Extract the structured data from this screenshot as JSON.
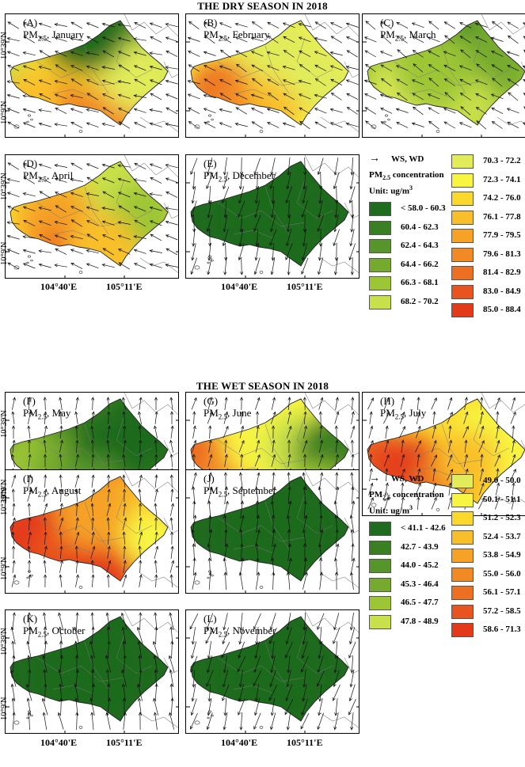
{
  "dry": {
    "title": "THE DRY SEASON IN 2018",
    "panels": [
      {
        "label": "(A)",
        "name": "PM2.5, January",
        "pre": "PM",
        "sub": "2.5",
        "post": ", January"
      },
      {
        "label": "(B)",
        "name": "PM2.5, February",
        "pre": "PM",
        "sub": "2.5",
        "post": ", February"
      },
      {
        "label": "(C)",
        "name": "PM2.5, March",
        "pre": "PM",
        "sub": "2.5",
        "post": ", March"
      },
      {
        "label": "(D)",
        "name": "PM2.5, April",
        "pre": "PM",
        "sub": "2.5",
        "post": ", April"
      },
      {
        "label": "(E)",
        "name": "PM2.5, December",
        "pre": "PM",
        "sub": "2.5",
        "post": ", December"
      }
    ],
    "legend": {
      "wind_label": "WS, WD",
      "conc_title_pre": "PM",
      "conc_title_sub": "2.5",
      "conc_title_post": " concentration",
      "unit": "Unit: ug/m",
      "unit_sup": "3",
      "items": [
        {
          "range": "< 58.0 - 60.3",
          "color": "#1f6b1f"
        },
        {
          "range": "60.4 - 62.3",
          "color": "#3a7f22"
        },
        {
          "range": "62.4 - 64.3",
          "color": "#55952a"
        },
        {
          "range": "64.4 - 66.2",
          "color": "#76aa2e"
        },
        {
          "range": "66.3 - 68.1",
          "color": "#9dc634"
        },
        {
          "range": "68.2 - 70.2",
          "color": "#c8e04a"
        },
        {
          "range": "70.3 - 72.2",
          "color": "#e2ec5a"
        },
        {
          "range": "72.3 - 74.1",
          "color": "#f8f542"
        },
        {
          "range": "74.2 - 76.0",
          "color": "#fbd82c"
        },
        {
          "range": "76.1 - 77.8",
          "color": "#f9bf2a"
        },
        {
          "range": "77.9 - 79.5",
          "color": "#f5a227"
        },
        {
          "range": "79.6 - 81.3",
          "color": "#f18a25"
        },
        {
          "range": "81.4 - 82.9",
          "color": "#ec6f22"
        },
        {
          "range": "83.0 - 84.9",
          "color": "#e9531f"
        },
        {
          "range": "85.0 - 88.4",
          "color": "#e43a1c"
        }
      ]
    }
  },
  "wet": {
    "title": "THE WET SEASON IN 2018",
    "panels": [
      {
        "label": "(F)",
        "name": "PM2.5, May",
        "pre": "PM",
        "sub": "2.5",
        "post": ", May"
      },
      {
        "label": "(G)",
        "name": "PM2.5, June",
        "pre": "PM",
        "sub": "2.5",
        "post": ", June"
      },
      {
        "label": "(H)",
        "name": "PM2.5, July",
        "pre": "PM",
        "sub": "2.5",
        "post": ", July"
      },
      {
        "label": "(I)",
        "name": "PM2.5, August",
        "pre": "PM",
        "sub": "2.5",
        "post": ", August"
      },
      {
        "label": "(J)",
        "name": "PM2.5, September",
        "pre": "PM",
        "sub": "2.5",
        "post": ", September"
      },
      {
        "label": "(K)",
        "name": "PM2.5, October",
        "pre": "PM",
        "sub": "2.5",
        "post": ", October"
      },
      {
        "label": "(L)",
        "name": "PM2.5, November",
        "pre": "PM",
        "sub": "2.5",
        "post": ", November"
      }
    ],
    "legend": {
      "wind_label": "WS, WD",
      "conc_title_pre": "PM",
      "conc_title_sub": "2.5",
      "conc_title_post": " concentration",
      "unit": "Unit: ug/m",
      "unit_sup": "3",
      "items": [
        {
          "range": "< 41.1 - 42.6",
          "color": "#1f6b1f"
        },
        {
          "range": "42.7 - 43.9",
          "color": "#3a7f22"
        },
        {
          "range": "44.0 - 45.2",
          "color": "#55952a"
        },
        {
          "range": "45.3 - 46.4",
          "color": "#76aa2e"
        },
        {
          "range": "46.5 - 47.7",
          "color": "#9dc634"
        },
        {
          "range": "47.8 - 48.9",
          "color": "#c8e04a"
        },
        {
          "range": "49.0 - 50.0",
          "color": "#e2ec5a"
        },
        {
          "range": "50.1 - 51.1",
          "color": "#f8f542"
        },
        {
          "range": "51.2 - 52.3",
          "color": "#fbd82c"
        },
        {
          "range": "52.4 - 53.7",
          "color": "#f9bf2a"
        },
        {
          "range": "53.8 - 54.9",
          "color": "#f5a227"
        },
        {
          "range": "55.0 - 56.0",
          "color": "#f18a25"
        },
        {
          "range": "56.1 - 57.1",
          "color": "#ec6f22"
        },
        {
          "range": "57.2 - 58.5",
          "color": "#e9531f"
        },
        {
          "range": "58.6 - 71.3",
          "color": "#e43a1c"
        }
      ]
    }
  },
  "axes": {
    "lat_top": "10°39'N",
    "lat_bottom": "10°9'N",
    "lon_left": "104°40'E",
    "lon_right": "105°11'E"
  }
}
